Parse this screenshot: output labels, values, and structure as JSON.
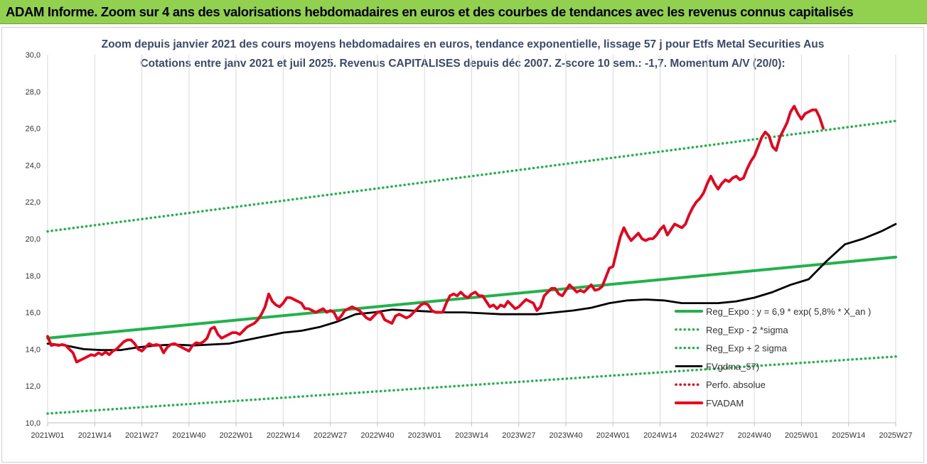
{
  "header": {
    "title": "ADAM Informe. Zoom sur 4 ans des valorisations hebdomadaires en euros et des courbes de tendances avec les revenus connus capitalisés"
  },
  "chart_data": {
    "type": "line",
    "title": "Zoom depuis janvier 2021 des cours moyens hebdomadaires en euros, tendance exponentielle, lissage 57 j pour Etfs Metal Securities Aus",
    "subtitle": "Cotations entre janv 2021 et juil 2025. Revenus CAPITALISES depuis déc 2007. Z-score 10 sem.: -1,7. Momentum A/V (20/0):",
    "xlabel": "",
    "ylabel": "",
    "ylim": [
      10,
      30
    ],
    "ytick_labels": [
      "10,0",
      "12,0",
      "14,0",
      "16,0",
      "18,0",
      "20,0",
      "22,0",
      "24,0",
      "26,0",
      "28,0",
      "30,0"
    ],
    "x_categories": [
      "2021W01",
      "2021W14",
      "2021W27",
      "2021W40",
      "2022W01",
      "2022W14",
      "2022W27",
      "2022W40",
      "2023W01",
      "2023W14",
      "2023W27",
      "2023W40",
      "2024W01",
      "2024W14",
      "2024W27",
      "2024W40",
      "2025W01",
      "2025W14",
      "2025W27"
    ],
    "grid": "vertical",
    "legend_position": "bottom-right",
    "series": [
      {
        "name": "Reg_Expo : y = 6,9 * exp( 5,8% *  X_an )",
        "style": "solid",
        "color": "#22b14c",
        "points": [
          [
            0,
            14.6
          ],
          [
            234,
            19.0
          ]
        ]
      },
      {
        "name": "Reg_Exp - 2 *sigma",
        "style": "dotted",
        "color": "#22b14c",
        "points": [
          [
            0,
            10.5
          ],
          [
            234,
            13.6
          ]
        ]
      },
      {
        "name": "Reg_Exp + 2 sigma",
        "style": "dotted",
        "color": "#22b14c",
        "points": [
          [
            0,
            20.4
          ],
          [
            234,
            26.4
          ]
        ]
      },
      {
        "name": "FVgdma_57)",
        "style": "solid",
        "color": "#000000",
        "points": [
          [
            0,
            14.3
          ],
          [
            5,
            14.2
          ],
          [
            10,
            14.0
          ],
          [
            15,
            13.95
          ],
          [
            20,
            13.95
          ],
          [
            25,
            14.1
          ],
          [
            30,
            14.2
          ],
          [
            35,
            14.25
          ],
          [
            40,
            14.2
          ],
          [
            45,
            14.25
          ],
          [
            50,
            14.3
          ],
          [
            55,
            14.5
          ],
          [
            60,
            14.7
          ],
          [
            65,
            14.9
          ],
          [
            70,
            15.0
          ],
          [
            75,
            15.2
          ],
          [
            80,
            15.5
          ],
          [
            85,
            15.9
          ],
          [
            90,
            16.0
          ],
          [
            95,
            16.15
          ],
          [
            100,
            16.1
          ],
          [
            105,
            16.05
          ],
          [
            110,
            16.0
          ],
          [
            115,
            16.0
          ],
          [
            120,
            15.95
          ],
          [
            125,
            15.9
          ],
          [
            130,
            15.9
          ],
          [
            135,
            15.9
          ],
          [
            140,
            16.0
          ],
          [
            145,
            16.1
          ],
          [
            150,
            16.25
          ],
          [
            155,
            16.5
          ],
          [
            160,
            16.65
          ],
          [
            165,
            16.7
          ],
          [
            170,
            16.65
          ],
          [
            175,
            16.5
          ],
          [
            180,
            16.5
          ],
          [
            185,
            16.5
          ],
          [
            190,
            16.6
          ],
          [
            195,
            16.8
          ],
          [
            200,
            17.1
          ],
          [
            205,
            17.5
          ],
          [
            210,
            17.8
          ],
          [
            215,
            18.8
          ],
          [
            220,
            19.7
          ],
          [
            225,
            20.0
          ],
          [
            230,
            20.4
          ],
          [
            234,
            20.8
          ]
        ]
      },
      {
        "name": "Perfo. absolue",
        "style": "dotted",
        "color": "#e8001c",
        "points": []
      },
      {
        "name": "FVADAM",
        "style": "solid",
        "color": "#e8001c",
        "points": [
          [
            0,
            14.7
          ],
          [
            1,
            14.2
          ],
          [
            2,
            14.25
          ],
          [
            3,
            14.2
          ],
          [
            4,
            14.25
          ],
          [
            5,
            14.2
          ],
          [
            6,
            14.0
          ],
          [
            7,
            13.8
          ],
          [
            8,
            13.3
          ],
          [
            9,
            13.4
          ],
          [
            10,
            13.5
          ],
          [
            11,
            13.6
          ],
          [
            12,
            13.7
          ],
          [
            13,
            13.65
          ],
          [
            14,
            13.8
          ],
          [
            15,
            13.7
          ],
          [
            16,
            13.85
          ],
          [
            17,
            13.7
          ],
          [
            18,
            13.9
          ],
          [
            19,
            14.0
          ],
          [
            20,
            14.2
          ],
          [
            21,
            14.4
          ],
          [
            22,
            14.5
          ],
          [
            23,
            14.5
          ],
          [
            24,
            14.3
          ],
          [
            25,
            14.0
          ],
          [
            26,
            13.9
          ],
          [
            27,
            14.1
          ],
          [
            28,
            14.3
          ],
          [
            29,
            14.2
          ],
          [
            30,
            14.25
          ],
          [
            31,
            14.2
          ],
          [
            32,
            13.8
          ],
          [
            33,
            14.1
          ],
          [
            34,
            14.25
          ],
          [
            35,
            14.3
          ],
          [
            36,
            14.2
          ],
          [
            37,
            14.1
          ],
          [
            38,
            14.0
          ],
          [
            39,
            13.9
          ],
          [
            40,
            14.2
          ],
          [
            41,
            14.35
          ],
          [
            42,
            14.3
          ],
          [
            43,
            14.4
          ],
          [
            44,
            14.6
          ],
          [
            45,
            15.1
          ],
          [
            46,
            15.2
          ],
          [
            47,
            14.8
          ],
          [
            48,
            14.6
          ],
          [
            49,
            14.7
          ],
          [
            50,
            14.8
          ],
          [
            51,
            14.9
          ],
          [
            52,
            14.9
          ],
          [
            53,
            14.8
          ],
          [
            54,
            15.0
          ],
          [
            55,
            15.2
          ],
          [
            56,
            15.3
          ],
          [
            57,
            15.4
          ],
          [
            58,
            15.6
          ],
          [
            59,
            15.9
          ],
          [
            60,
            16.3
          ],
          [
            61,
            17.0
          ],
          [
            62,
            16.6
          ],
          [
            63,
            16.4
          ],
          [
            64,
            16.3
          ],
          [
            65,
            16.5
          ],
          [
            66,
            16.8
          ],
          [
            67,
            16.8
          ],
          [
            68,
            16.7
          ],
          [
            69,
            16.6
          ],
          [
            70,
            16.5
          ],
          [
            71,
            16.2
          ],
          [
            72,
            16.2
          ],
          [
            73,
            16.1
          ],
          [
            74,
            16.0
          ],
          [
            75,
            16.1
          ],
          [
            76,
            16.2
          ],
          [
            77,
            16.0
          ],
          [
            78,
            16.1
          ],
          [
            79,
            16.0
          ],
          [
            80,
            15.6
          ],
          [
            81,
            15.8
          ],
          [
            82,
            16.1
          ],
          [
            83,
            16.2
          ],
          [
            84,
            16.3
          ],
          [
            85,
            16.2
          ],
          [
            86,
            16.1
          ],
          [
            87,
            15.9
          ],
          [
            88,
            15.7
          ],
          [
            89,
            15.6
          ],
          [
            90,
            15.8
          ],
          [
            91,
            16.0
          ],
          [
            92,
            16.0
          ],
          [
            93,
            15.6
          ],
          [
            94,
            15.5
          ],
          [
            95,
            15.4
          ],
          [
            96,
            15.8
          ],
          [
            97,
            15.9
          ],
          [
            98,
            15.8
          ],
          [
            99,
            15.7
          ],
          [
            100,
            15.8
          ],
          [
            101,
            16.0
          ],
          [
            102,
            16.2
          ],
          [
            103,
            16.4
          ],
          [
            104,
            16.5
          ],
          [
            105,
            16.4
          ],
          [
            106,
            16.1
          ],
          [
            107,
            16.0
          ],
          [
            108,
            16.0
          ],
          [
            109,
            16.0
          ],
          [
            110,
            16.5
          ],
          [
            111,
            16.9
          ],
          [
            112,
            17.0
          ],
          [
            113,
            16.9
          ],
          [
            114,
            17.1
          ],
          [
            115,
            16.9
          ],
          [
            116,
            16.8
          ],
          [
            117,
            17.0
          ],
          [
            118,
            17.1
          ],
          [
            119,
            16.9
          ],
          [
            120,
            16.9
          ],
          [
            121,
            16.6
          ],
          [
            122,
            16.3
          ],
          [
            123,
            16.4
          ],
          [
            124,
            16.2
          ],
          [
            125,
            16.4
          ],
          [
            126,
            16.3
          ],
          [
            127,
            16.6
          ],
          [
            128,
            16.4
          ],
          [
            129,
            16.2
          ],
          [
            130,
            16.3
          ],
          [
            131,
            16.5
          ],
          [
            132,
            16.7
          ],
          [
            133,
            16.6
          ],
          [
            134,
            16.5
          ],
          [
            135,
            16.1
          ],
          [
            136,
            16.3
          ],
          [
            137,
            16.9
          ],
          [
            138,
            17.1
          ],
          [
            139,
            17.3
          ],
          [
            140,
            17.3
          ],
          [
            141,
            17.0
          ],
          [
            142,
            16.9
          ],
          [
            143,
            17.2
          ],
          [
            144,
            17.5
          ],
          [
            145,
            17.3
          ],
          [
            146,
            17.1
          ],
          [
            147,
            17.2
          ],
          [
            148,
            17.1
          ],
          [
            149,
            17.3
          ],
          [
            150,
            17.5
          ],
          [
            151,
            17.2
          ],
          [
            152,
            17.25
          ],
          [
            153,
            17.4
          ],
          [
            154,
            17.9
          ],
          [
            155,
            18.4
          ],
          [
            156,
            18.5
          ],
          [
            157,
            19.3
          ],
          [
            158,
            20.1
          ],
          [
            159,
            20.6
          ],
          [
            160,
            20.2
          ],
          [
            161,
            19.9
          ],
          [
            162,
            20.1
          ],
          [
            163,
            20.3
          ],
          [
            164,
            20.0
          ],
          [
            165,
            19.9
          ],
          [
            166,
            20.0
          ],
          [
            167,
            20.0
          ],
          [
            168,
            20.2
          ],
          [
            169,
            20.5
          ],
          [
            170,
            20.7
          ],
          [
            171,
            20.2
          ],
          [
            172,
            20.5
          ],
          [
            173,
            20.8
          ],
          [
            174,
            20.7
          ],
          [
            175,
            20.6
          ],
          [
            176,
            20.8
          ],
          [
            177,
            21.3
          ],
          [
            178,
            21.7
          ],
          [
            179,
            22.0
          ],
          [
            180,
            22.2
          ],
          [
            181,
            22.5
          ],
          [
            182,
            23.0
          ],
          [
            183,
            23.4
          ],
          [
            184,
            23.0
          ],
          [
            185,
            22.7
          ],
          [
            186,
            23.0
          ],
          [
            187,
            23.2
          ],
          [
            188,
            23.1
          ],
          [
            189,
            23.3
          ],
          [
            190,
            23.4
          ],
          [
            191,
            23.2
          ],
          [
            192,
            23.3
          ],
          [
            193,
            23.8
          ],
          [
            194,
            24.2
          ],
          [
            195,
            24.5
          ],
          [
            196,
            25.0
          ],
          [
            197,
            25.5
          ],
          [
            198,
            25.8
          ],
          [
            199,
            25.6
          ],
          [
            200,
            25.0
          ],
          [
            201,
            24.8
          ],
          [
            202,
            25.5
          ],
          [
            203,
            25.9
          ],
          [
            204,
            26.3
          ],
          [
            205,
            26.9
          ],
          [
            206,
            27.2
          ],
          [
            207,
            26.8
          ],
          [
            208,
            26.5
          ],
          [
            209,
            26.8
          ],
          [
            210,
            26.9
          ],
          [
            211,
            27.0
          ],
          [
            212,
            27.0
          ],
          [
            213,
            26.6
          ],
          [
            214,
            26.0
          ]
        ]
      }
    ]
  }
}
